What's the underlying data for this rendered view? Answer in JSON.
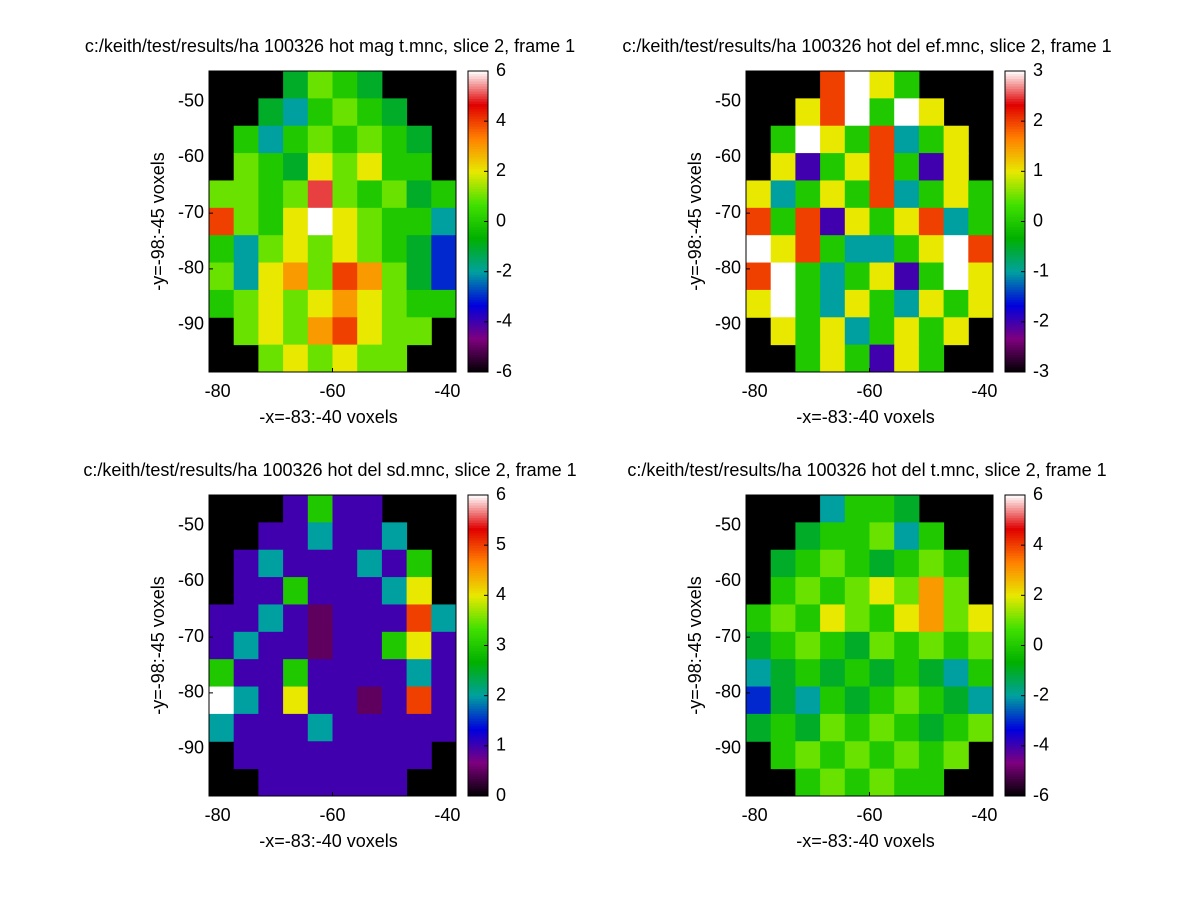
{
  "chart_data": [
    {
      "type": "heatmap",
      "title": "c:/keith/test/results/ha 100326 hot mag t.mnc, slice 2, frame 1",
      "xlabel": "-x=-83:-40 voxels",
      "ylabel": "-y=-98:-45 voxels",
      "xlim": [
        -81.5,
        -38.5
      ],
      "xticks": [
        -80,
        -60,
        -40
      ],
      "ylim": [
        -98.5,
        -44.5
      ],
      "yticks": [
        -90,
        -80,
        -70,
        -60,
        -50
      ],
      "clim": [
        -6,
        6
      ],
      "cticks": [
        -6,
        -4,
        -2,
        0,
        2,
        4,
        6
      ],
      "colormap": [
        "#000000",
        "#7f007f",
        "#0000dd",
        "#00a0a0",
        "#00b000",
        "#40e000",
        "#e8e800",
        "#ff8000",
        "#e00000",
        "#ffffff"
      ],
      "values": [
        [
          null,
          null,
          null,
          -1,
          1,
          0,
          -1,
          null,
          null,
          null
        ],
        [
          null,
          null,
          -1,
          -2,
          0,
          1,
          0,
          -1,
          null,
          null
        ],
        [
          null,
          0,
          -2,
          0,
          1,
          0,
          1,
          0,
          -1,
          null
        ],
        [
          null,
          1,
          0,
          -1,
          2,
          1,
          2,
          0,
          0,
          null
        ],
        [
          1,
          1,
          0,
          1,
          5,
          1,
          0,
          1,
          -1,
          0
        ],
        [
          4,
          1,
          0,
          2,
          6,
          2,
          1,
          0,
          0,
          -2
        ],
        [
          0,
          -2,
          1,
          2,
          1,
          2,
          1,
          0,
          -1,
          -3
        ],
        [
          1,
          -2,
          2,
          3,
          1,
          4,
          3,
          1,
          -1,
          -3
        ],
        [
          0,
          1,
          2,
          1,
          2,
          3,
          2,
          1,
          0,
          0
        ],
        [
          null,
          1,
          2,
          1,
          3,
          4,
          2,
          1,
          1,
          null
        ],
        [
          null,
          null,
          1,
          2,
          1,
          2,
          1,
          1,
          null,
          null
        ]
      ]
    },
    {
      "type": "heatmap",
      "title": "c:/keith/test/results/ha 100326 hot del ef.mnc, slice 2, frame 1",
      "xlabel": "-x=-83:-40 voxels",
      "ylabel": "-y=-98:-45 voxels",
      "xlim": [
        -81.5,
        -38.5
      ],
      "xticks": [
        -80,
        -60,
        -40
      ],
      "ylim": [
        -98.5,
        -44.5
      ],
      "yticks": [
        -90,
        -80,
        -70,
        -60,
        -50
      ],
      "clim": [
        -3,
        3
      ],
      "cticks": [
        -3,
        -2,
        -1,
        0,
        1,
        2,
        3
      ],
      "colormap": [
        "#000000",
        "#7f007f",
        "#0000dd",
        "#00a0a0",
        "#00b000",
        "#40e000",
        "#e8e800",
        "#ff8000",
        "#e00000",
        "#ffffff"
      ],
      "values": [
        [
          null,
          null,
          null,
          2,
          3,
          1,
          0,
          null,
          null,
          null
        ],
        [
          null,
          null,
          1,
          2,
          3,
          0,
          3,
          1,
          null,
          null
        ],
        [
          null,
          0,
          3,
          1,
          0,
          2,
          -1,
          0,
          1,
          null
        ],
        [
          null,
          1,
          -2,
          0,
          1,
          2,
          0,
          -2,
          1,
          null
        ],
        [
          1,
          -1,
          0,
          1,
          0,
          2,
          -1,
          0,
          1,
          0
        ],
        [
          2,
          0,
          2,
          -2,
          1,
          0,
          1,
          2,
          -1,
          0
        ],
        [
          3,
          1,
          2,
          0,
          -1,
          -1,
          0,
          1,
          3,
          2
        ],
        [
          2,
          3,
          0,
          -1,
          0,
          1,
          -2,
          0,
          3,
          1
        ],
        [
          1,
          3,
          0,
          -1,
          1,
          0,
          -1,
          1,
          0,
          1
        ],
        [
          null,
          1,
          0,
          1,
          -1,
          0,
          1,
          0,
          1,
          null
        ],
        [
          null,
          null,
          0,
          1,
          0,
          -2,
          1,
          0,
          null,
          null
        ]
      ]
    },
    {
      "type": "heatmap",
      "title": "c:/keith/test/results/ha 100326 hot del sd.mnc, slice 2, frame 1",
      "xlabel": "-x=-83:-40 voxels",
      "ylabel": "-y=-98:-45 voxels",
      "xlim": [
        -81.5,
        -38.5
      ],
      "xticks": [
        -80,
        -60,
        -40
      ],
      "ylim": [
        -98.5,
        -44.5
      ],
      "yticks": [
        -90,
        -80,
        -70,
        -60,
        -50
      ],
      "clim": [
        0,
        6
      ],
      "cticks": [
        0,
        1,
        2,
        3,
        4,
        5,
        6
      ],
      "colormap": [
        "#000000",
        "#7f007f",
        "#0000dd",
        "#00a0a0",
        "#00b000",
        "#40e000",
        "#e8e800",
        "#ff8000",
        "#e00000",
        "#ffffff"
      ],
      "values": [
        [
          null,
          null,
          null,
          1,
          3,
          1,
          1,
          null,
          null,
          null
        ],
        [
          null,
          null,
          1,
          1,
          2,
          1,
          1,
          2,
          null,
          null
        ],
        [
          null,
          1,
          2,
          1,
          1,
          1,
          2,
          1,
          3,
          null
        ],
        [
          null,
          1,
          1,
          3,
          1,
          1,
          1,
          2,
          4,
          null
        ],
        [
          1,
          1,
          2,
          1,
          0.5,
          1,
          1,
          1,
          5,
          2
        ],
        [
          1,
          2,
          1,
          1,
          0.5,
          1,
          1,
          3,
          4,
          1
        ],
        [
          3,
          1,
          1,
          3,
          1,
          1,
          1,
          1,
          2,
          1
        ],
        [
          6,
          2,
          1,
          4,
          1,
          1,
          0.5,
          1,
          5,
          1
        ],
        [
          2,
          1,
          1,
          1,
          2,
          1,
          1,
          1,
          1,
          1
        ],
        [
          null,
          1,
          1,
          1,
          1,
          1,
          1,
          1,
          1,
          null
        ],
        [
          null,
          null,
          1,
          1,
          1,
          1,
          1,
          1,
          null,
          null
        ]
      ]
    },
    {
      "type": "heatmap",
      "title": "c:/keith/test/results/ha 100326 hot del t.mnc, slice 2, frame 1",
      "xlabel": "-x=-83:-40 voxels",
      "ylabel": "-y=-98:-45 voxels",
      "xlim": [
        -81.5,
        -38.5
      ],
      "xticks": [
        -80,
        -60,
        -40
      ],
      "ylim": [
        -98.5,
        -44.5
      ],
      "yticks": [
        -90,
        -80,
        -70,
        -60,
        -50
      ],
      "clim": [
        -6,
        6
      ],
      "cticks": [
        -6,
        -4,
        -2,
        0,
        2,
        4,
        6
      ],
      "colormap": [
        "#000000",
        "#7f007f",
        "#0000dd",
        "#00a0a0",
        "#00b000",
        "#40e000",
        "#e8e800",
        "#ff8000",
        "#e00000",
        "#ffffff"
      ],
      "values": [
        [
          null,
          null,
          null,
          -2,
          0,
          0,
          -1,
          null,
          null,
          null
        ],
        [
          null,
          null,
          -1,
          0,
          0,
          1,
          -2,
          0,
          null,
          null
        ],
        [
          null,
          -1,
          0,
          1,
          0,
          -1,
          0,
          1,
          0,
          null
        ],
        [
          null,
          0,
          1,
          0,
          1,
          2,
          1,
          3,
          1,
          null
        ],
        [
          0,
          1,
          0,
          2,
          1,
          0,
          2,
          3,
          1,
          2
        ],
        [
          -1,
          0,
          1,
          0,
          -1,
          1,
          0,
          1,
          0,
          1
        ],
        [
          -2,
          -1,
          0,
          -1,
          0,
          -1,
          0,
          -1,
          -2,
          0
        ],
        [
          -3,
          -1,
          -2,
          0,
          -1,
          0,
          1,
          0,
          -1,
          -2
        ],
        [
          -1,
          0,
          -1,
          1,
          0,
          1,
          0,
          -1,
          0,
          1
        ],
        [
          null,
          0,
          1,
          0,
          1,
          0,
          1,
          0,
          1,
          null
        ],
        [
          null,
          null,
          0,
          1,
          0,
          1,
          0,
          0,
          null,
          null
        ]
      ]
    }
  ]
}
